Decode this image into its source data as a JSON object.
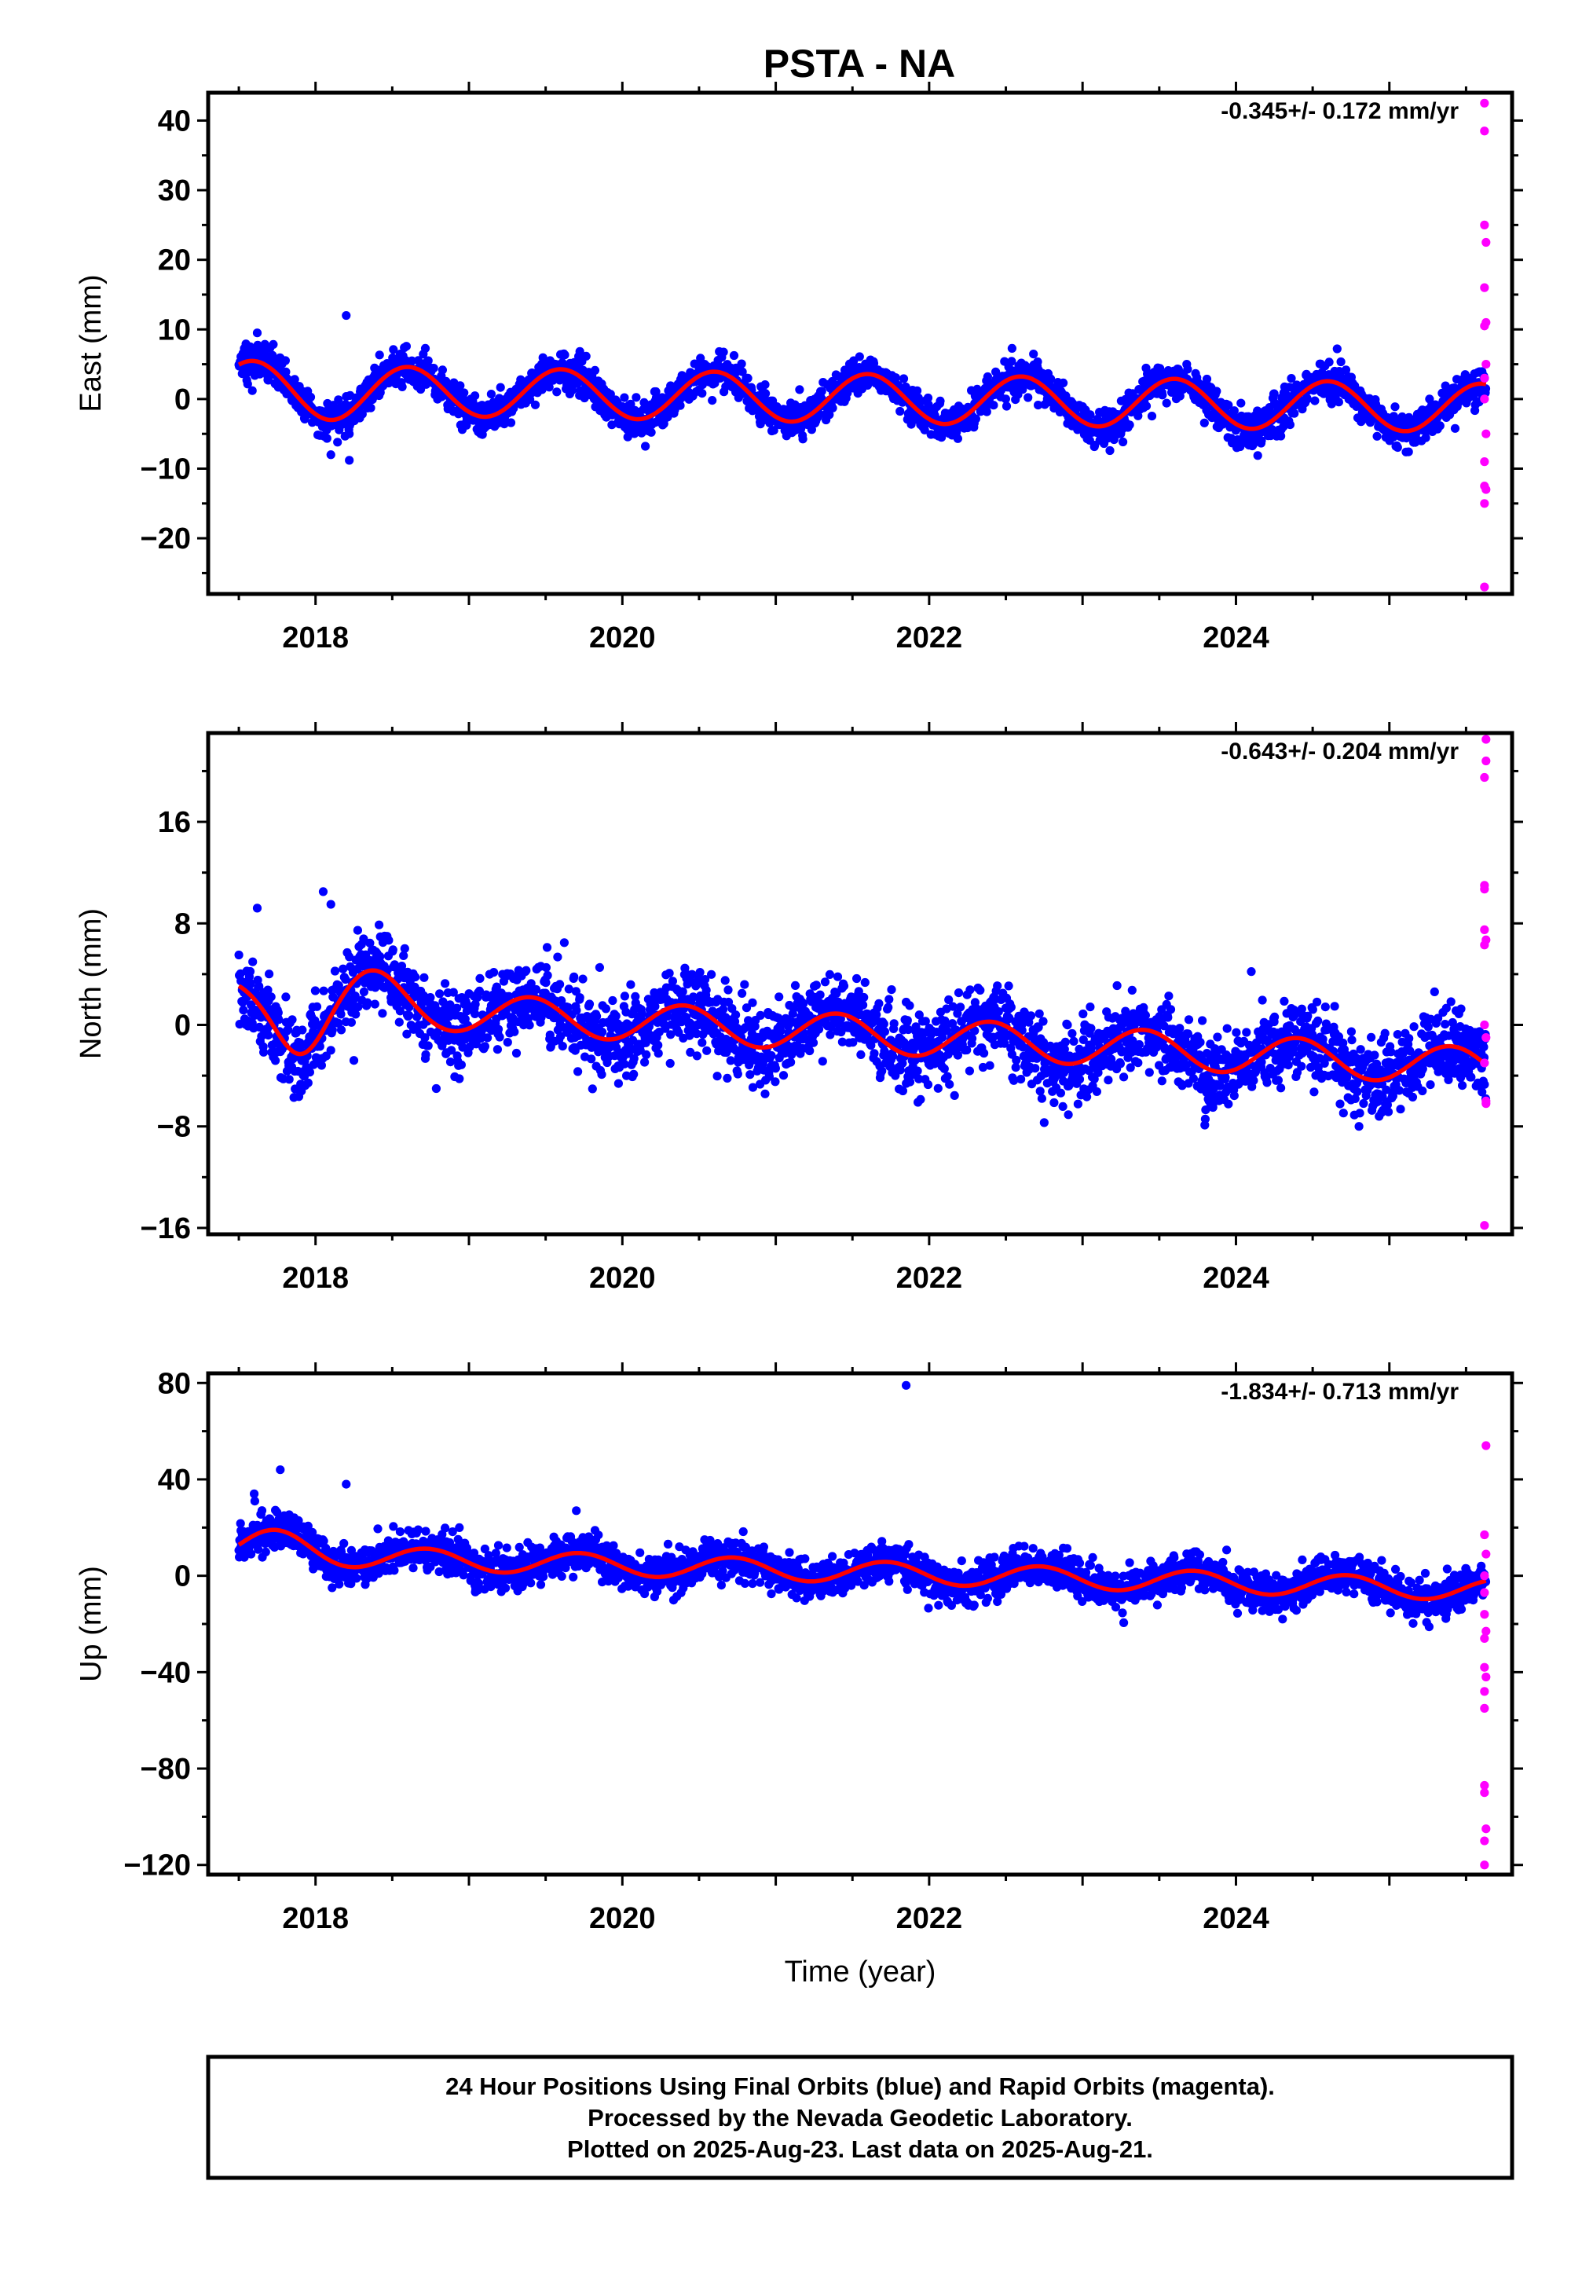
{
  "title": "PSTA - NA",
  "colors": {
    "final_orbits": "#0000ff",
    "rapid_orbits": "#ff00ff",
    "model_fit": "#ff0000",
    "frame": "#000000"
  },
  "chart_data": [
    {
      "type": "scatter",
      "ylabel": "East (mm)",
      "xlabel": "",
      "xlim": [
        2017.3,
        2025.8
      ],
      "ylim": [
        -28,
        44
      ],
      "yticks": [
        -20,
        -10,
        0,
        10,
        20,
        30,
        40
      ],
      "xticks": [
        2018,
        2020,
        2022,
        2024
      ],
      "grid": false,
      "rate": "-0.345+/- 0.172 mm/yr",
      "fit": {
        "offset": 1.5,
        "trend": -0.345,
        "amplitude": 3.5,
        "amplitude_growth": 0,
        "phase_peak": 0.6,
        "anchor_year": 2017.5,
        "extra": [
          [
            2017.5,
            0.6,
            0.25
          ],
          [
            2018.1,
            -0.8,
            0.25
          ]
        ]
      },
      "noise": 1.3,
      "series": [
        {
          "name": "Final Orbits",
          "color": "#0000ff",
          "start": 2017.5,
          "end": 2025.63
        },
        {
          "name": "Rapid Orbits",
          "color": "#ff00ff",
          "x": [
            2025.62,
            2025.62,
            2025.62,
            2025.63,
            2025.62,
            2025.63,
            2025.62,
            2025.63,
            2025.62,
            2025.62,
            2025.63,
            2025.62,
            2025.62,
            2025.63,
            2025.62,
            2025.62
          ],
          "y": [
            42.5,
            38.5,
            25,
            22.5,
            16,
            11,
            10.5,
            5,
            3,
            0,
            -5,
            -9,
            -12.5,
            -13,
            -15,
            -27
          ]
        }
      ],
      "outliers": [
        [
          2017.62,
          9.5
        ],
        [
          2018.2,
          12
        ],
        [
          2018.1,
          -8
        ],
        [
          2018.22,
          -8.8
        ],
        [
          2018.22,
          -5
        ]
      ]
    },
    {
      "type": "scatter",
      "ylabel": "North (mm)",
      "xlabel": "",
      "xlim": [
        2017.3,
        2025.8
      ],
      "ylim": [
        -16.5,
        23
      ],
      "yticks": [
        -16,
        -8,
        0,
        8,
        16
      ],
      "xticks": [
        2018,
        2020,
        2022,
        2024
      ],
      "grid": false,
      "rate": "-0.643+/- 0.204 mm/yr",
      "fit": {
        "offset": 1.9,
        "trend": -0.643,
        "amplitude": 1.5,
        "amplitude_growth": 0,
        "phase_peak": 0.4,
        "anchor_year": 2017.5,
        "extra": [
          [
            2017.9,
            -2.5,
            0.2
          ],
          [
            2018.35,
            1.5,
            0.25
          ]
        ]
      },
      "noise": 1.5,
      "series": [
        {
          "name": "Final Orbits",
          "color": "#0000ff",
          "start": 2017.5,
          "end": 2025.63
        },
        {
          "name": "Rapid Orbits",
          "color": "#ff00ff",
          "x": [
            2025.63,
            2025.63,
            2025.62,
            2025.62,
            2025.62,
            2025.62,
            2025.63,
            2025.62,
            2025.62,
            2025.63,
            2025.62,
            2025.63,
            2025.63,
            2025.62
          ],
          "y": [
            22.5,
            20.8,
            19.5,
            11,
            10.7,
            7.5,
            6.7,
            6.3,
            0,
            -1,
            -3,
            -6,
            -6.2,
            -15.8
          ]
        }
      ],
      "outliers": [
        [
          2017.62,
          9.2
        ],
        [
          2018.05,
          10.5
        ],
        [
          2018.1,
          9.5
        ],
        [
          2018.25,
          -2.8
        ],
        [
          2018.45,
          7
        ],
        [
          2021.85,
          1.8
        ],
        [
          2022.75,
          -7.7
        ],
        [
          2023.85,
          -6.5
        ],
        [
          2024.1,
          4.2
        ]
      ]
    },
    {
      "type": "scatter",
      "ylabel": "Up (mm)",
      "xlabel": "Time (year)",
      "xlim": [
        2017.3,
        2025.8
      ],
      "ylim": [
        -124,
        84
      ],
      "yticks": [
        -120,
        -80,
        -40,
        0,
        40,
        80
      ],
      "xticks": [
        2018,
        2020,
        2022,
        2024
      ],
      "grid": false,
      "rate": "-1.834+/- 0.713 mm/yr",
      "fit": {
        "offset": 9,
        "trend": -1.834,
        "amplitude": 4.5,
        "amplitude_growth": 0,
        "phase_peak": 0.72,
        "anchor_year": 2017.5,
        "extra": [
          [
            2017.75,
            6,
            0.3
          ]
        ]
      },
      "noise": 4,
      "series": [
        {
          "name": "Final Orbits",
          "color": "#0000ff",
          "start": 2017.5,
          "end": 2025.63
        },
        {
          "name": "Rapid Orbits",
          "color": "#ff00ff",
          "x": [
            2025.63,
            2025.62,
            2025.63,
            2025.62,
            2025.62,
            2025.62,
            2025.63,
            2025.62,
            2025.62,
            2025.63,
            2025.62,
            2025.62,
            2025.62,
            2025.62,
            2025.63,
            2025.62,
            2025.62
          ],
          "y": [
            54,
            17,
            9,
            0,
            -7,
            -16,
            -23,
            -26,
            -38,
            -42,
            -48,
            -55,
            -87,
            -90,
            -105,
            -110,
            -120
          ]
        }
      ],
      "outliers": [
        [
          2021.85,
          79
        ],
        [
          2017.77,
          44
        ],
        [
          2018.2,
          38
        ],
        [
          2019.7,
          27
        ],
        [
          2017.6,
          34
        ]
      ]
    }
  ],
  "footer": {
    "line1": "24 Hour Positions Using Final Orbits (blue) and Rapid Orbits (magenta).",
    "line2": "Processed by the Nevada Geodetic Laboratory.",
    "line3": "Plotted on 2025-Aug-23. Last data on 2025-Aug-21."
  }
}
